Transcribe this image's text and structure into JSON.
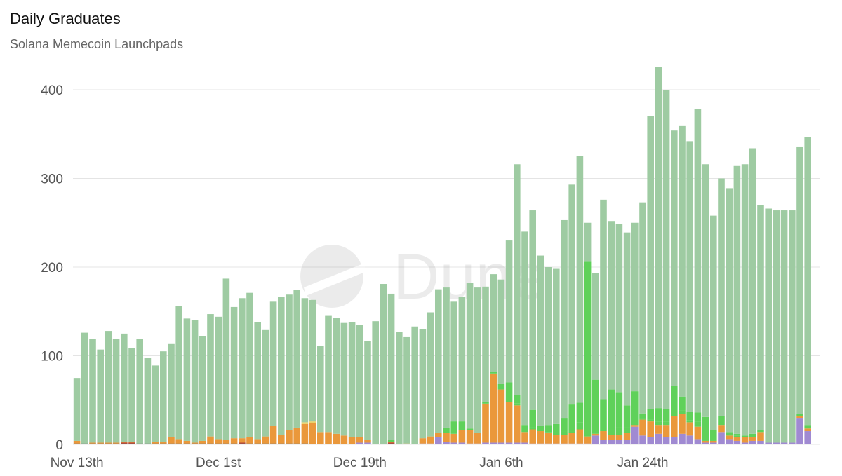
{
  "title": "Daily Graduates",
  "subtitle": "Solana Memecoin Launchpads",
  "watermark": "Dune",
  "chart_data": {
    "type": "bar",
    "stacked": true,
    "title": "Daily Graduates",
    "subtitle": "Solana Memecoin Launchpads",
    "xlabel": "",
    "ylabel": "",
    "ylim": [
      0,
      400
    ],
    "yticks": [
      0,
      100,
      200,
      300,
      400
    ],
    "xticks": [
      {
        "label": "Nov 13th",
        "index": 0
      },
      {
        "label": "Dec 1st",
        "index": 18
      },
      {
        "label": "Dec 19th",
        "index": 36
      },
      {
        "label": "Jan 6th",
        "index": 54
      },
      {
        "label": "Jan 24th",
        "index": 72
      }
    ],
    "grid": true,
    "legend": "none",
    "colors": {
      "light_green": "#9ecba2",
      "green": "#5fd15a",
      "orange": "#ea983b",
      "purple": "#a08ad2",
      "black": "#1a1a1a",
      "red": "#b43c2c",
      "yellow": "#e8d26a"
    },
    "series": [
      {
        "color": "black",
        "values": [
          1,
          1,
          1,
          1,
          1,
          1,
          1,
          1,
          1,
          1,
          1,
          1,
          1,
          1,
          1,
          1,
          1,
          1,
          1,
          1,
          1,
          1,
          1,
          1,
          1,
          1,
          1,
          1,
          1,
          1,
          0,
          0,
          0,
          0,
          0,
          0,
          0,
          0,
          0,
          0,
          1,
          0,
          0,
          0,
          0,
          0,
          0,
          0,
          0,
          0,
          0,
          0,
          0,
          0,
          0,
          0,
          0,
          0,
          0,
          0,
          0,
          0,
          0,
          0,
          0,
          0,
          0,
          0,
          0,
          0,
          0,
          0,
          0,
          0,
          0,
          0,
          0,
          0,
          0,
          0,
          0,
          0,
          0,
          0,
          0,
          0,
          0,
          0,
          0,
          0,
          0,
          0,
          0,
          0,
          0
        ]
      },
      {
        "color": "red",
        "values": [
          0,
          0,
          0,
          0,
          0,
          0,
          1,
          1,
          0,
          0,
          0,
          0,
          0,
          0,
          0,
          0,
          0,
          0,
          0,
          0,
          0,
          1,
          0,
          0,
          0,
          0,
          0,
          0,
          0,
          0,
          0,
          0,
          0,
          0,
          0,
          0,
          0,
          0,
          0,
          0,
          1,
          0,
          0,
          0,
          0,
          0,
          0,
          0,
          0,
          0,
          0,
          0,
          0,
          0,
          0,
          0,
          0,
          0,
          0,
          0,
          0,
          0,
          0,
          0,
          0,
          0,
          0,
          0,
          0,
          0,
          0,
          0,
          0,
          0,
          0,
          0,
          0,
          0,
          0,
          0,
          0,
          0,
          0,
          0,
          0,
          0,
          0,
          0,
          0,
          0,
          0,
          0,
          0,
          0,
          0
        ]
      },
      {
        "color": "purple",
        "values": [
          0,
          0,
          0,
          0,
          0,
          0,
          0,
          0,
          0,
          0,
          0,
          0,
          0,
          0,
          0,
          0,
          0,
          0,
          0,
          0,
          0,
          0,
          0,
          0,
          0,
          0,
          0,
          0,
          0,
          0,
          0,
          0,
          0,
          0,
          0,
          0,
          2,
          2,
          0,
          0,
          0,
          0,
          0,
          0,
          1,
          1,
          8,
          3,
          2,
          2,
          1,
          1,
          2,
          2,
          2,
          2,
          2,
          2,
          1,
          1,
          1,
          1,
          1,
          1,
          1,
          1,
          10,
          5,
          5,
          5,
          5,
          20,
          10,
          8,
          12,
          8,
          8,
          12,
          10,
          6,
          2,
          2,
          14,
          6,
          4,
          2,
          4,
          4,
          2,
          2,
          2,
          2,
          30,
          15,
          0
        ]
      },
      {
        "color": "orange",
        "values": [
          3,
          0,
          1,
          1,
          1,
          1,
          1,
          1,
          0,
          0,
          2,
          2,
          7,
          5,
          3,
          1,
          3,
          8,
          5,
          4,
          6,
          5,
          7,
          5,
          8,
          20,
          10,
          15,
          18,
          22,
          24,
          14,
          14,
          12,
          10,
          8,
          6,
          3,
          0,
          0,
          1,
          0,
          1,
          0,
          6,
          8,
          5,
          10,
          10,
          14,
          15,
          12,
          44,
          78,
          60,
          46,
          42,
          12,
          16,
          14,
          12,
          10,
          10,
          12,
          16,
          8,
          2,
          10,
          6,
          6,
          8,
          2,
          18,
          18,
          10,
          14,
          24,
          22,
          15,
          14,
          2,
          2,
          8,
          4,
          4,
          6,
          4,
          10,
          0,
          0,
          0,
          0,
          2,
          3,
          0
        ]
      },
      {
        "color": "yellow",
        "values": [
          0,
          0,
          0,
          0,
          0,
          0,
          0,
          0,
          0,
          0,
          0,
          0,
          0,
          0,
          0,
          0,
          0,
          0,
          0,
          0,
          0,
          0,
          0,
          0,
          0,
          0,
          0,
          0,
          0,
          2,
          2,
          0,
          0,
          0,
          0,
          0,
          0,
          0,
          0,
          0,
          0,
          0,
          0,
          0,
          0,
          0,
          0,
          0,
          0,
          0,
          0,
          0,
          0,
          0,
          0,
          0,
          0,
          0,
          0,
          0,
          0,
          0,
          0,
          0,
          0,
          0,
          0,
          0,
          0,
          0,
          0,
          0,
          0,
          0,
          0,
          0,
          0,
          0,
          0,
          0,
          0,
          0,
          0,
          0,
          0,
          0,
          0,
          0,
          0,
          0,
          0,
          0,
          0,
          0,
          0
        ]
      },
      {
        "color": "green",
        "values": [
          0,
          0,
          0,
          0,
          0,
          0,
          0,
          0,
          0,
          0,
          0,
          0,
          0,
          0,
          0,
          0,
          0,
          0,
          0,
          0,
          0,
          0,
          0,
          0,
          0,
          0,
          0,
          0,
          0,
          0,
          0,
          0,
          0,
          0,
          0,
          0,
          0,
          0,
          0,
          0,
          0,
          0,
          0,
          0,
          0,
          0,
          0,
          6,
          14,
          10,
          2,
          0,
          2,
          2,
          6,
          2,
          2,
          0,
          2,
          2,
          1,
          2,
          4,
          2,
          8,
          2,
          1,
          6,
          6,
          8,
          6,
          2,
          2,
          2,
          4,
          4,
          10,
          4,
          2,
          6,
          12,
          4,
          10,
          4,
          2,
          2,
          4,
          2,
          0,
          0,
          0,
          0,
          2,
          4,
          0
        ]
      },
      {
        "color": "green",
        "values": [
          0,
          0,
          0,
          0,
          0,
          0,
          0,
          0,
          0,
          0,
          0,
          0,
          0,
          0,
          0,
          0,
          0,
          0,
          0,
          0,
          0,
          0,
          0,
          0,
          0,
          0,
          0,
          0,
          0,
          0,
          0,
          0,
          0,
          0,
          0,
          0,
          0,
          0,
          0,
          0,
          2,
          0,
          0,
          0,
          0,
          0,
          0,
          0,
          0,
          0,
          0,
          0,
          0,
          0,
          0,
          20,
          10,
          8,
          20,
          4,
          8,
          10,
          15,
          30,
          22,
          195,
          60,
          30,
          45,
          40,
          25,
          36,
          5,
          12,
          15,
          14,
          24,
          16,
          10,
          10,
          15,
          8,
          0,
          0,
          2,
          0,
          0,
          0,
          0,
          0,
          0,
          0,
          0,
          0,
          0
        ]
      },
      {
        "color": "light_green",
        "values": [
          71,
          125,
          117,
          105,
          126,
          117,
          122,
          106,
          118,
          97,
          86,
          102,
          106,
          150,
          138,
          138,
          118,
          138,
          138,
          182,
          148,
          158,
          163,
          132,
          120,
          140,
          155,
          153,
          155,
          140,
          137,
          97,
          131,
          131,
          127,
          130,
          127,
          112,
          139,
          181,
          165,
          127,
          120,
          133,
          123,
          140,
          162,
          158,
          135,
          140,
          164,
          164,
          130,
          110,
          118,
          160,
          260,
          218,
          225,
          192,
          178,
          175,
          223,
          248,
          278,
          44,
          120,
          225,
          190,
          190,
          195,
          190,
          238,
          330,
          385,
          360,
          288,
          305,
          305,
          342,
          285,
          242,
          268,
          275,
          302,
          306,
          322,
          254,
          264,
          262,
          262,
          262,
          302,
          325,
          0
        ]
      }
    ]
  }
}
